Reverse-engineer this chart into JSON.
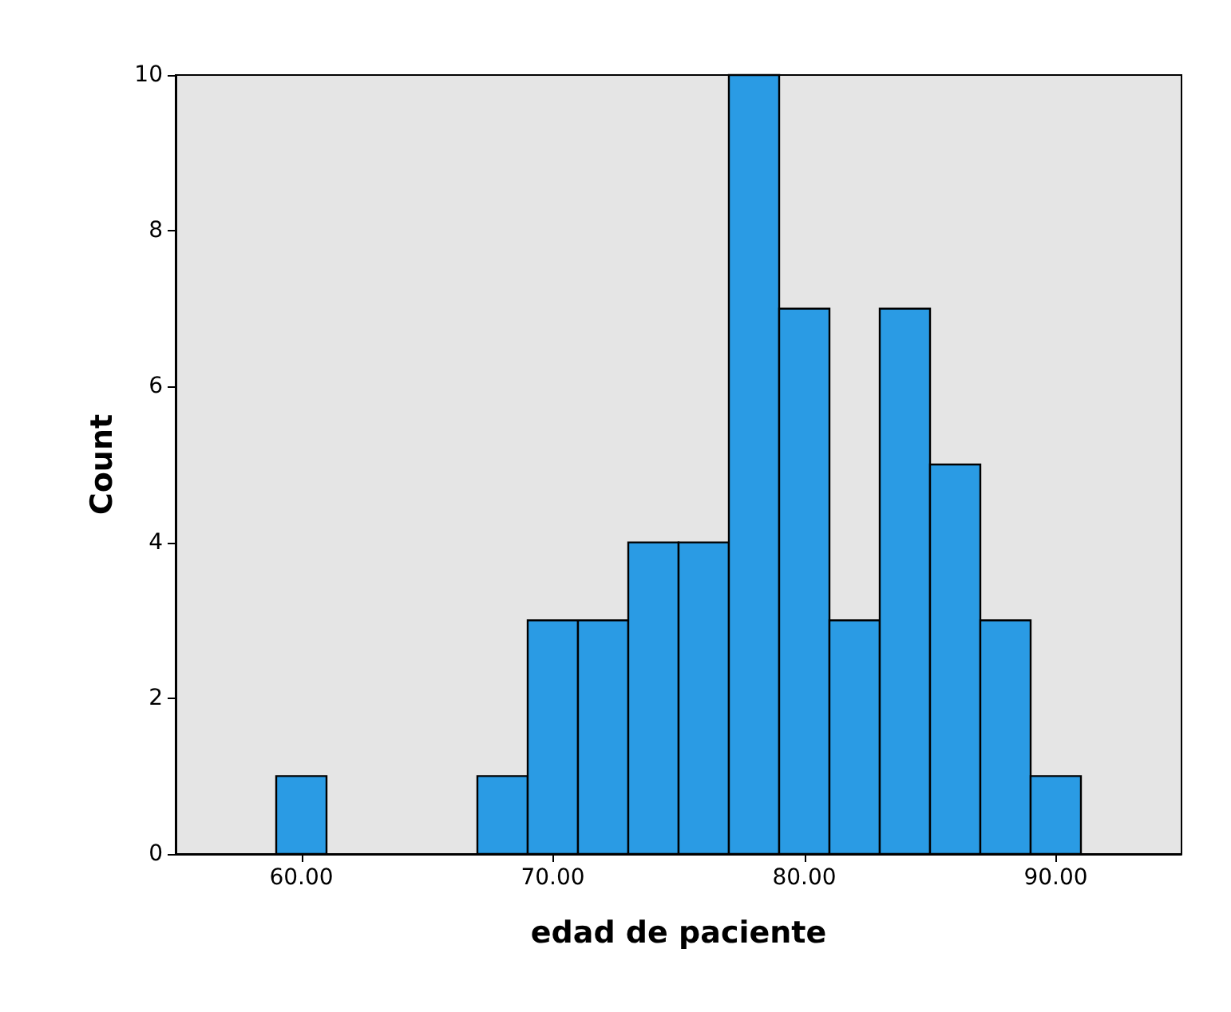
{
  "chart_data": {
    "type": "histogram",
    "xlabel": "edad de paciente",
    "ylabel": "Count",
    "bins": [
      59,
      61,
      63,
      65,
      67,
      69,
      71,
      73,
      75,
      77,
      79,
      81,
      83,
      85,
      87,
      89,
      91
    ],
    "values": [
      1,
      0,
      0,
      0,
      1,
      3,
      3,
      4,
      4,
      10,
      7,
      3,
      7,
      5,
      3,
      1
    ],
    "color": "#2a9be4",
    "xlim": [
      55,
      95
    ],
    "xticks": [
      {
        "value": 60,
        "label": "60.00"
      },
      {
        "value": 70,
        "label": "70.00"
      },
      {
        "value": 80,
        "label": "80.00"
      },
      {
        "value": 90,
        "label": "90.00"
      }
    ],
    "ylim": [
      0,
      10
    ],
    "yticks": [
      0,
      2,
      4,
      6,
      8,
      10
    ],
    "grid": false
  }
}
